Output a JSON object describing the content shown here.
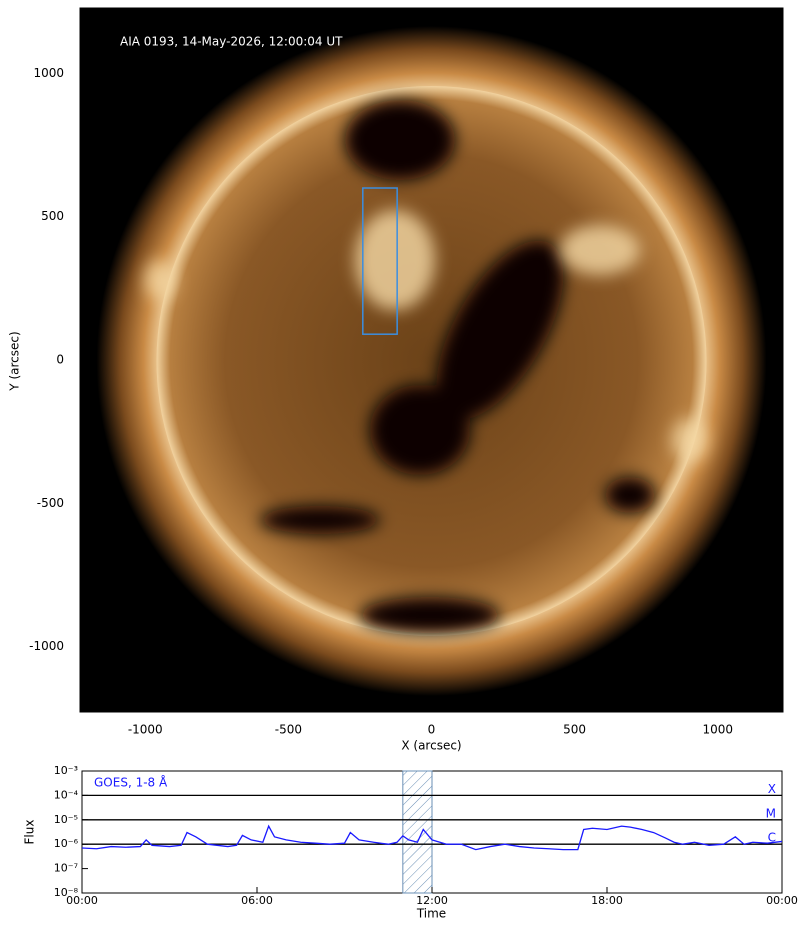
{
  "chart_data": [
    {
      "type": "image",
      "annotation": "AIA 0193, 14-May-2026, 12:00:04 UT",
      "xlabel": "X (arcsec)",
      "ylabel": "Y (arcsec)",
      "xlim": [
        -1228,
        1228
      ],
      "ylim": [
        -1228,
        1228
      ],
      "xticks": [
        -1000,
        -500,
        0,
        500,
        1000
      ],
      "yticks": [
        -1000,
        -500,
        0,
        500,
        1000
      ],
      "region": {
        "x": [
          -240,
          -120
        ],
        "y": [
          90,
          600
        ],
        "color": "#3b8ee0"
      }
    },
    {
      "type": "line",
      "log": true,
      "xlabel": "Time",
      "ylabel": "Flux",
      "xlim": [
        0,
        24
      ],
      "ylim": [
        1e-08,
        0.001
      ],
      "xticks": [
        {
          "value": 0,
          "label": "00:00"
        },
        {
          "value": 6,
          "label": "06:00"
        },
        {
          "value": 12,
          "label": "12:00"
        },
        {
          "value": 18,
          "label": "18:00"
        },
        {
          "value": 24,
          "label": "00:00"
        }
      ],
      "yticks": [
        {
          "value": 1e-08,
          "label": "10⁻⁸"
        },
        {
          "value": 1e-07,
          "label": "10⁻⁷"
        },
        {
          "value": 1e-06,
          "label": "10⁻⁶"
        },
        {
          "value": 1e-05,
          "label": "10⁻⁵"
        },
        {
          "value": 0.0001,
          "label": "10⁻⁴"
        },
        {
          "value": 0.001,
          "label": "10⁻³"
        }
      ],
      "levels": [
        {
          "label": "X",
          "value": 0.0001
        },
        {
          "label": "M",
          "value": 1e-05
        },
        {
          "label": "C",
          "value": 1e-06
        }
      ],
      "span": [
        11,
        12
      ],
      "x": [
        0,
        0.5,
        1,
        1.5,
        2,
        2.2,
        2.4,
        3,
        3.4,
        3.6,
        3.9,
        4.3,
        5,
        5.3,
        5.5,
        5.8,
        6.2,
        6.4,
        6.6,
        7,
        7.5,
        8,
        8.5,
        9,
        9.2,
        9.5,
        10,
        10.5,
        10.8,
        11,
        11.2,
        11.5,
        11.7,
        12,
        12.5,
        13,
        13.5,
        14,
        14.5,
        15,
        15.5,
        16,
        16.5,
        17,
        17.2,
        17.5,
        18,
        18.5,
        18.8,
        19.2,
        19.6,
        20,
        20.3,
        20.6,
        21,
        21.5,
        22,
        22.4,
        22.7,
        23,
        23.5,
        24
      ],
      "series": [
        {
          "name": "GOES, 1-8 Å",
          "color": "#1a1aff",
          "values": [
            7e-07,
            6.5e-07,
            8e-07,
            7.5e-07,
            8e-07,
            1.5e-06,
            9e-07,
            8e-07,
            9e-07,
            3e-06,
            2e-06,
            1e-06,
            8e-07,
            9e-07,
            2.3e-06,
            1.5e-06,
            1.2e-06,
            5.5e-06,
            2e-06,
            1.5e-06,
            1.2e-06,
            1.1e-06,
            1e-06,
            1.1e-06,
            3e-06,
            1.5e-06,
            1.2e-06,
            1e-06,
            1.2e-06,
            2.2e-06,
            1.5e-06,
            1.2e-06,
            4e-06,
            1.5e-06,
            1e-06,
            1e-06,
            6e-07,
            8e-07,
            1e-06,
            8e-07,
            7e-07,
            6.5e-07,
            6e-07,
            6e-07,
            4e-06,
            4.5e-06,
            4e-06,
            5.5e-06,
            5e-06,
            4e-06,
            3e-06,
            1.8e-06,
            1.2e-06,
            1e-06,
            1.2e-06,
            9e-07,
            1e-06,
            2e-06,
            1e-06,
            1.2e-06,
            1.1e-06,
            1.3e-06
          ]
        }
      ]
    }
  ]
}
